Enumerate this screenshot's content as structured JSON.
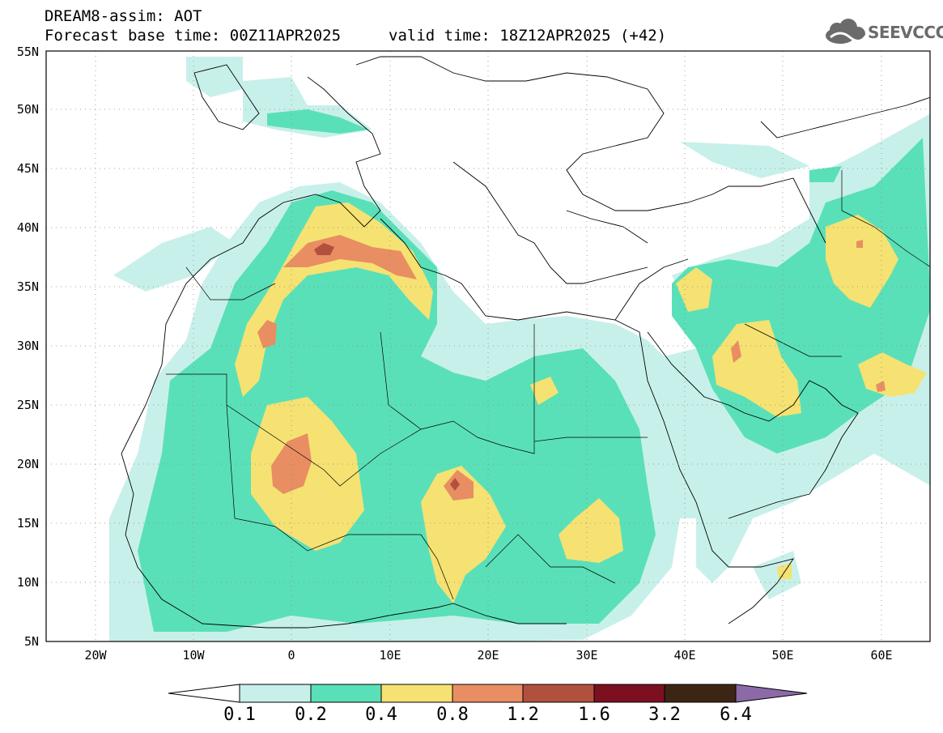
{
  "header": {
    "title": "DREAM8-assim: AOT",
    "base_time": "Forecast base time: 00Z11APR2025",
    "valid_time": "valid time: 18Z12APR2025 (+42)",
    "logo_text": "SEEVCCC"
  },
  "axes": {
    "lat_labels": [
      "55N",
      "50N",
      "45N",
      "40N",
      "35N",
      "30N",
      "25N",
      "20N",
      "15N",
      "10N",
      "5N"
    ],
    "lon_labels": [
      "20W",
      "10W",
      "0",
      "10E",
      "20E",
      "30E",
      "40E",
      "50E",
      "60E"
    ]
  },
  "legend": {
    "levels": [
      "0.1",
      "0.2",
      "0.4",
      "0.8",
      "1.2",
      "1.6",
      "3.2",
      "6.4"
    ],
    "colors": [
      "#c8f0ea",
      "#5ae0b8",
      "#f5e272",
      "#e88e62",
      "#b2503e",
      "#7d1020",
      "#3d2514",
      "#8c6aa8"
    ]
  },
  "colors": {
    "aot_01_02": "#c8f0ea",
    "aot_02_04": "#5ae0b8",
    "aot_04_08": "#f5e272",
    "aot_08_12": "#e88e62",
    "aot_12_16": "#b2503e"
  }
}
